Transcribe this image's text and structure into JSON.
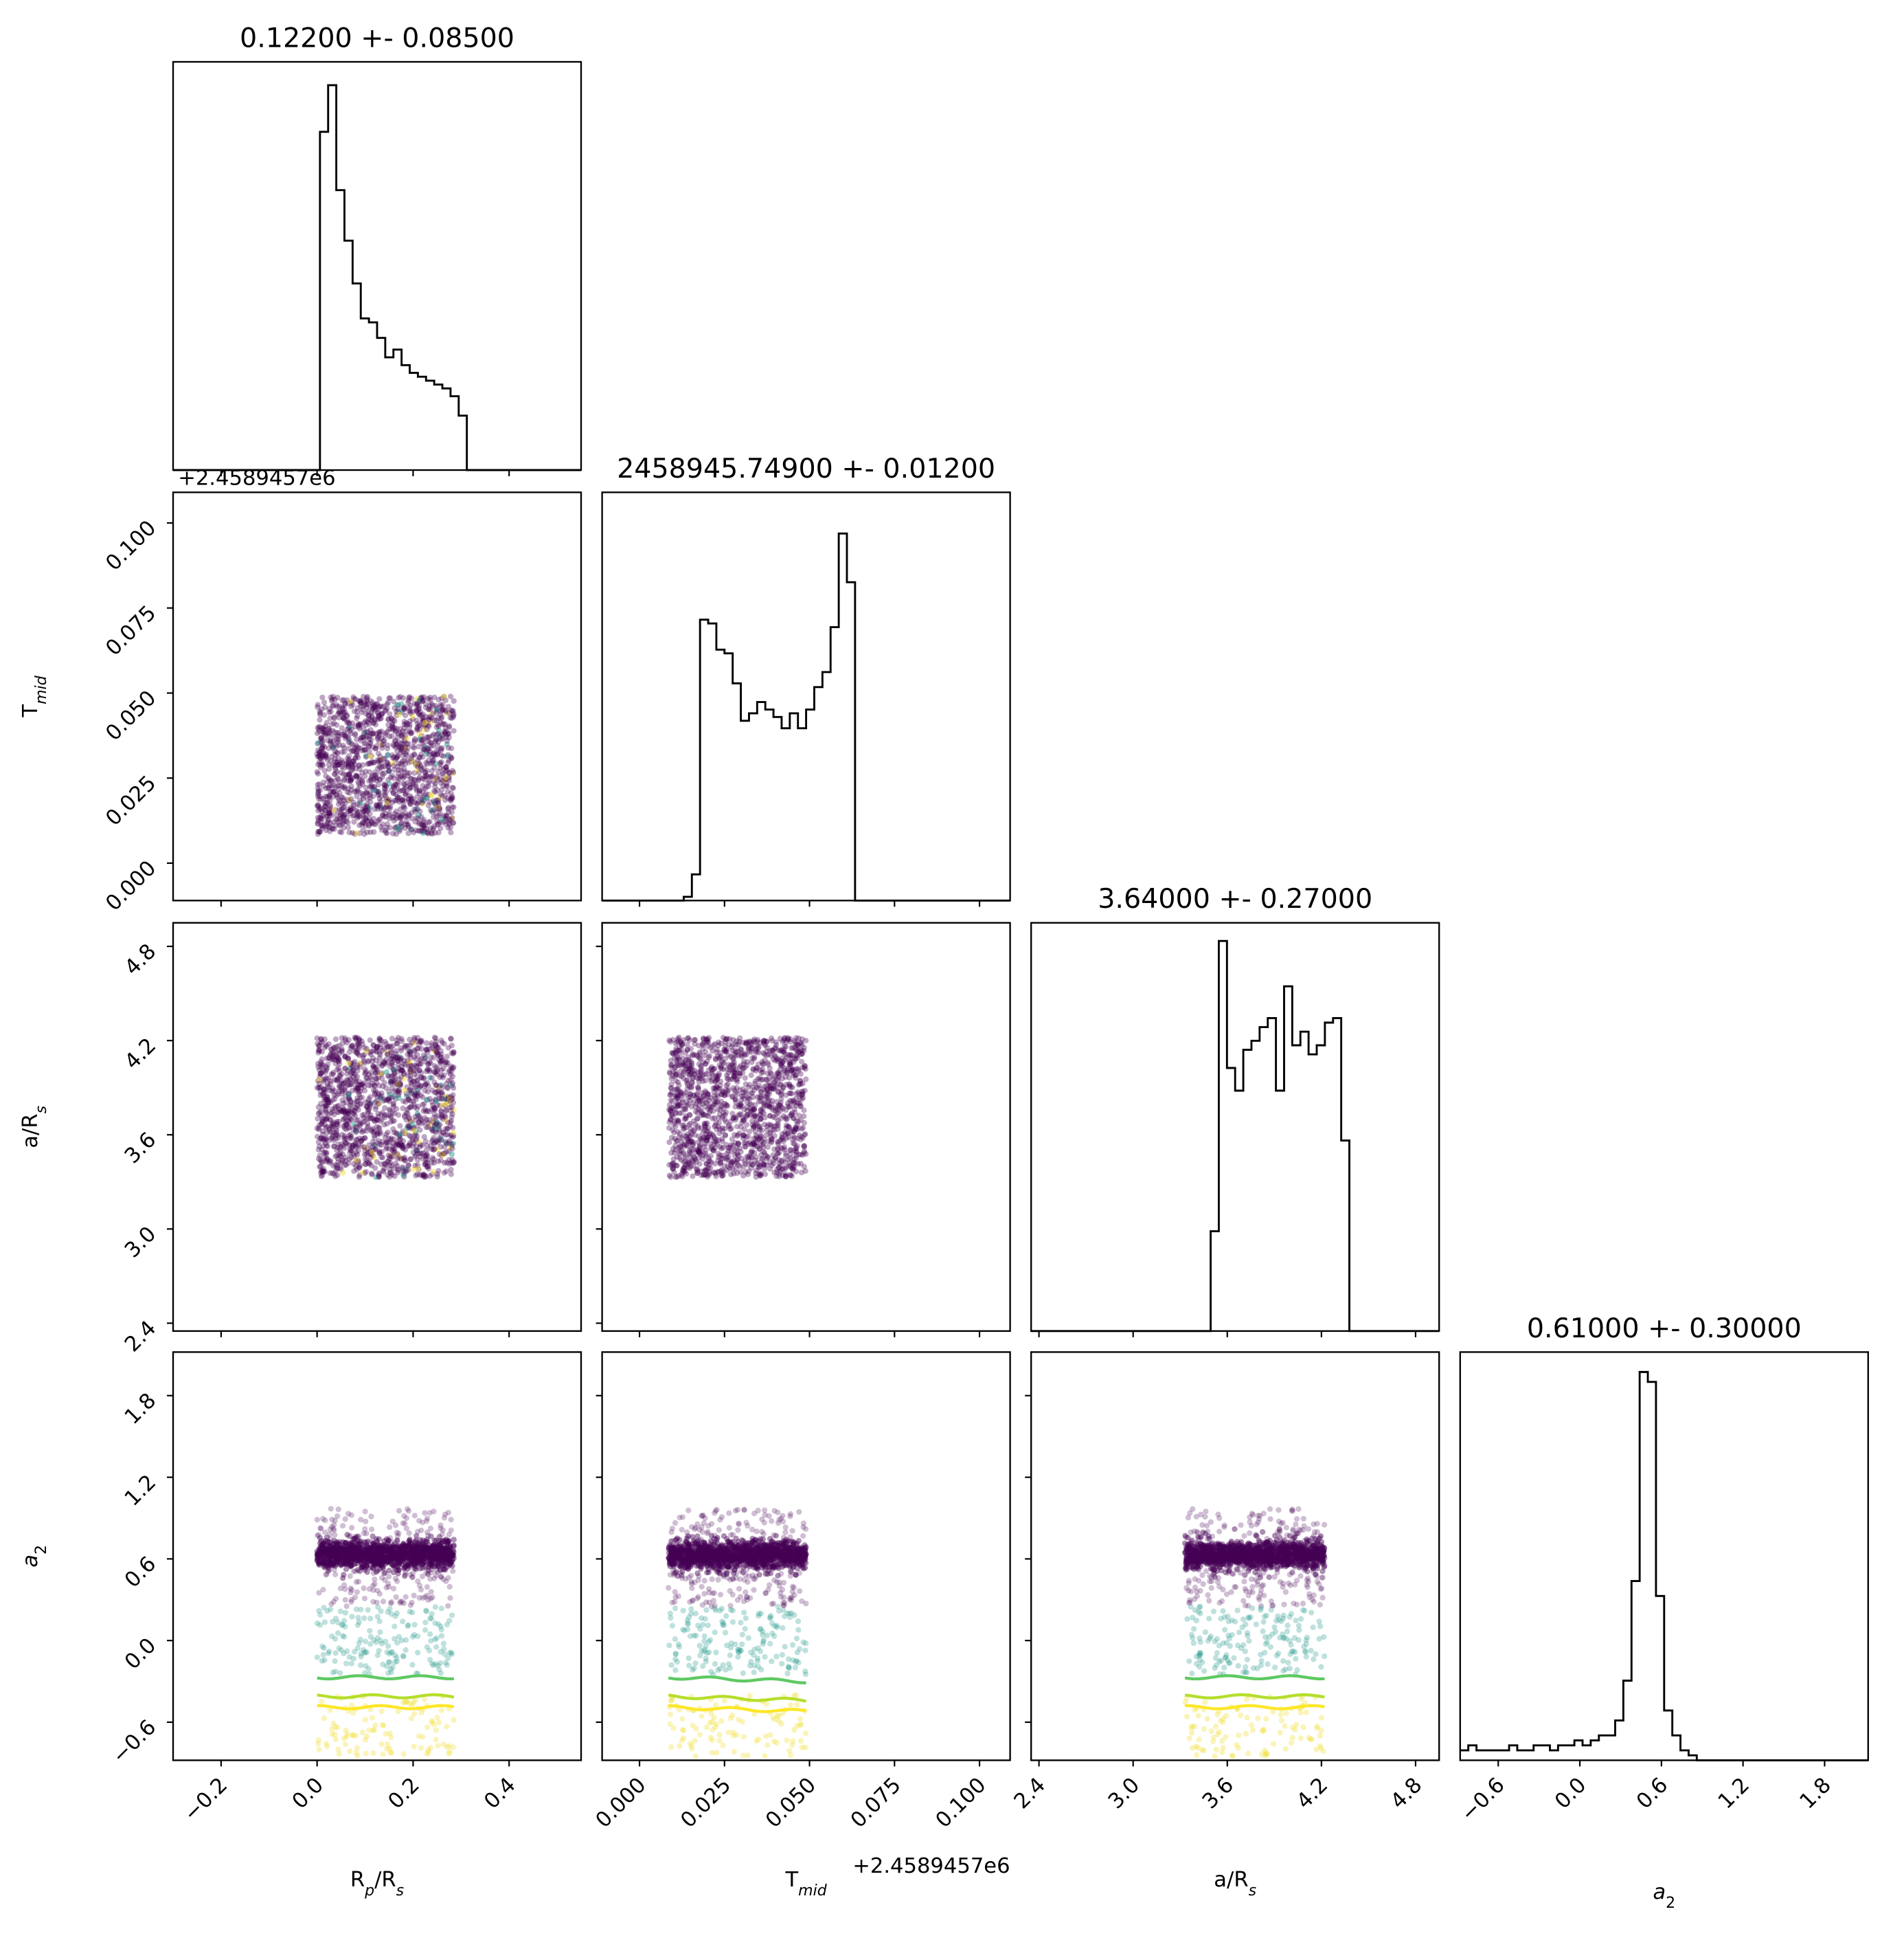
{
  "colors": {
    "axes": "#000000",
    "hist": "#000000",
    "scatter_main": "#440154",
    "scatter_mid": "#2a9d8f",
    "scatter_light": "#7fd3a6",
    "scatter_yellow": "#f2e03a",
    "contour_green": "#5ec962",
    "contour_yellowgreen": "#b5de2b",
    "contour_yellow": "#fde725"
  },
  "chart_data": {
    "type": "corner",
    "parameters": [
      {
        "key": "rp",
        "label": "R_p/R_s",
        "label_main": "R",
        "label_sub": "p",
        "label_tail": "/R",
        "label_sub2": "s",
        "range": [
          -0.3,
          0.55
        ],
        "ticks": [
          -0.2,
          0.0,
          0.2,
          0.4
        ],
        "tick_labels": [
          "−0.2",
          "0.0",
          "0.2",
          "0.4"
        ],
        "title": "0.12200 +- 0.08500",
        "mean": 0.122,
        "std": 0.085
      },
      {
        "key": "tmid",
        "label": "T_mid",
        "label_main": "T",
        "label_sub": "mid",
        "range": [
          -0.011,
          0.109
        ],
        "ticks": [
          0.0,
          0.025,
          0.05,
          0.075,
          0.1
        ],
        "tick_labels": [
          "0.000",
          "0.025",
          "0.050",
          "0.075",
          "0.100"
        ],
        "offset_text": "+2.4589457e6",
        "title": "2458945.74900 +- 0.01200",
        "mean": 2458945.749,
        "std": 0.012
      },
      {
        "key": "ars",
        "label": "a/R_s",
        "label_main": "a/R",
        "label_sub": "s",
        "range": [
          2.35,
          4.95
        ],
        "ticks": [
          2.4,
          3.0,
          3.6,
          4.2,
          4.8
        ],
        "tick_labels": [
          "2.4",
          "3.0",
          "3.6",
          "4.2",
          "4.8"
        ],
        "title": "3.64000 +- 0.27000",
        "mean": 3.64,
        "std": 0.27
      },
      {
        "key": "a2",
        "label": "a_2",
        "label_main": "a",
        "label_sub": "2",
        "range": [
          -0.88,
          2.12
        ],
        "ticks": [
          -0.6,
          0.0,
          0.6,
          1.2,
          1.8
        ],
        "tick_labels": [
          "−0.6",
          "0.0",
          "0.6",
          "1.2",
          "1.8"
        ],
        "title": "0.61000 +- 0.30000",
        "mean": 0.61,
        "std": 0.3
      }
    ],
    "offset_text_rp_row": "+2.4589457e6",
    "histograms": {
      "rp": {
        "edges_start": -0.3,
        "bin_width": 0.017,
        "counts": [
          0,
          0,
          0,
          0,
          0,
          0,
          0,
          0,
          0,
          0,
          0,
          0,
          0,
          0,
          0,
          0,
          0,
          0,
          87,
          99,
          72,
          59,
          48,
          39,
          38,
          34,
          29,
          31,
          27,
          25,
          24,
          23,
          22,
          21,
          19,
          14,
          0,
          0,
          0,
          0,
          0,
          0,
          0,
          0,
          0,
          0,
          0,
          0,
          0,
          0
        ],
        "ymax": 105
      },
      "tmid": {
        "edges_start": -0.011,
        "bin_width": 0.0024,
        "counts": [
          0,
          0,
          0,
          0,
          0,
          0,
          0,
          0,
          0,
          0,
          1,
          7,
          75,
          74,
          67,
          66,
          58,
          48,
          50,
          53,
          51,
          49,
          46,
          50,
          46,
          51,
          57,
          61,
          73,
          98,
          85,
          0,
          0,
          0,
          0,
          0,
          0,
          0,
          0,
          0,
          0,
          0,
          0,
          0,
          0,
          0,
          0,
          0,
          0,
          0
        ],
        "ymax": 109
      },
      "ars": {
        "edges_start": 2.35,
        "bin_width": 0.052,
        "counts": [
          0,
          0,
          0,
          0,
          0,
          0,
          0,
          0,
          0,
          0,
          0,
          0,
          0,
          0,
          0,
          0,
          0,
          0,
          0,
          0,
          0,
          0,
          22,
          86,
          58,
          53,
          62,
          64,
          67,
          69,
          53,
          76,
          63,
          66,
          61,
          63,
          68,
          69,
          42,
          0,
          0,
          0,
          0,
          0,
          0,
          0,
          0,
          0,
          0,
          0
        ],
        "ymax": 90
      },
      "a2": {
        "edges_start": -0.88,
        "bin_width": 0.06,
        "counts": [
          2,
          3,
          2,
          2,
          2,
          2,
          3,
          2,
          2,
          3,
          3,
          2,
          3,
          3,
          4,
          3,
          4,
          5,
          5,
          8,
          16,
          36,
          78,
          76,
          33,
          10,
          5,
          2,
          1,
          0,
          0,
          0,
          0,
          0,
          0,
          0,
          0,
          0,
          0,
          0,
          0,
          0,
          0,
          0,
          0,
          0,
          0,
          0,
          0,
          0
        ],
        "ymax": 82
      }
    },
    "scatter_panels": [
      {
        "x": "rp",
        "y": "tmid",
        "x_range": [
          0.0,
          0.285
        ],
        "y_range": [
          0.0085,
          0.049
        ],
        "style": "uniform"
      },
      {
        "x": "rp",
        "y": "ars",
        "x_range": [
          0.0,
          0.285
        ],
        "y_range": [
          3.33,
          4.22
        ],
        "style": "uniform"
      },
      {
        "x": "tmid",
        "y": "ars",
        "x_range": [
          0.0085,
          0.049
        ],
        "y_range": [
          3.33,
          4.22
        ],
        "style": "uniform"
      },
      {
        "x": "rp",
        "y": "a2",
        "x_range": [
          0.0,
          0.285
        ],
        "style": "a2",
        "contours": [
          {
            "y": -0.27,
            "color": "contour_green"
          },
          {
            "y": -0.41,
            "color": "contour_yellowgreen"
          },
          {
            "y": -0.49,
            "color": "contour_yellow"
          }
        ]
      },
      {
        "x": "tmid",
        "y": "a2",
        "x_range": [
          0.0085,
          0.049
        ],
        "style": "a2",
        "contours": [
          {
            "y": -0.27,
            "color": "contour_green"
          },
          {
            "y": -0.41,
            "color": "contour_yellowgreen"
          },
          {
            "y": -0.49,
            "color": "contour_yellow"
          }
        ]
      },
      {
        "x": "ars",
        "y": "a2",
        "x_range": [
          3.33,
          4.22
        ],
        "style": "a2",
        "contours": [
          {
            "y": -0.27,
            "color": "contour_green"
          },
          {
            "y": -0.41,
            "color": "contour_yellowgreen"
          },
          {
            "y": -0.49,
            "color": "contour_yellow"
          }
        ]
      }
    ]
  }
}
